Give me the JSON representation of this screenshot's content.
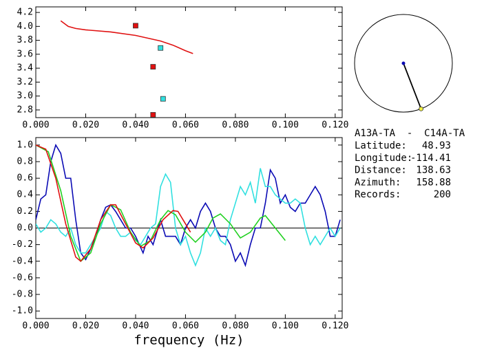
{
  "chart_data": [
    {
      "type": "scatter",
      "xlim": [
        0,
        0.1228
      ],
      "ylim": [
        2.69,
        4.28
      ],
      "xticks": [
        {
          "value": 0,
          "label": "0.000"
        },
        {
          "value": 0.02,
          "label": "0.020"
        },
        {
          "value": 0.04,
          "label": "0.040"
        },
        {
          "value": 0.06,
          "label": "0.060"
        },
        {
          "value": 0.08,
          "label": "0.080"
        },
        {
          "value": 0.1,
          "label": "0.100"
        },
        {
          "value": 0.12,
          "label": "0.120"
        }
      ],
      "yticks": [
        4.2,
        {
          "value": 4.0,
          "label": "4.0"
        },
        3.8,
        3.6,
        3.4,
        3.2,
        {
          "value": 3.0,
          "label": "3.0"
        },
        2.8
      ],
      "series": [
        {
          "color": "#e01010",
          "style": "line",
          "x": [
            0.01,
            0.013,
            0.016,
            0.02,
            0.03,
            0.04,
            0.05,
            0.055,
            0.06,
            0.063
          ],
          "values": [
            4.08,
            4.0,
            3.97,
            3.95,
            3.92,
            3.87,
            3.79,
            3.73,
            3.65,
            3.61
          ]
        },
        {
          "color": "#e01010",
          "style": "marker",
          "x": [
            0.04,
            0.047,
            0.047
          ],
          "values": [
            4.01,
            3.42,
            2.73
          ]
        },
        {
          "color": "#30e0e0",
          "style": "marker",
          "x": [
            0.05,
            0.051
          ],
          "values": [
            3.69,
            2.96
          ]
        }
      ]
    },
    {
      "type": "line",
      "x_label": "frequency (Hz)",
      "xlim": [
        0,
        0.1228
      ],
      "ylim": [
        -1.09,
        1.09
      ],
      "zero_line": true,
      "xticks": [
        {
          "value": 0,
          "label": "0.000"
        },
        {
          "value": 0.02,
          "label": "0.020"
        },
        {
          "value": 0.04,
          "label": "0.040"
        },
        {
          "value": 0.06,
          "label": "0.060"
        },
        {
          "value": 0.08,
          "label": "0.080"
        },
        {
          "value": 0.1,
          "label": "0.100"
        },
        {
          "value": 0.12,
          "label": "0.120"
        }
      ],
      "yticks": [
        {
          "value": 1.0,
          "label": "1.0"
        },
        0.8,
        0.6,
        0.4,
        0.2,
        {
          "value": 0.0,
          "label": "0.0"
        },
        -0.2,
        -0.4,
        -0.6,
        -0.8,
        {
          "value": -1.0,
          "label": "-1.0"
        }
      ],
      "series": [
        {
          "color": "#0a0ab4",
          "x": [
            0,
            0.002,
            0.004,
            0.006,
            0.008,
            0.01,
            0.012,
            0.014,
            0.016,
            0.018,
            0.02,
            0.022,
            0.024,
            0.026,
            0.028,
            0.03,
            0.032,
            0.034,
            0.036,
            0.038,
            0.04,
            0.043,
            0.045,
            0.047,
            0.05,
            0.052,
            0.054,
            0.056,
            0.058,
            0.06,
            0.062,
            0.064,
            0.066,
            0.068,
            0.07,
            0.072,
            0.074,
            0.076,
            0.078,
            0.08,
            0.082,
            0.084,
            0.086,
            0.088,
            0.09,
            0.092,
            0.094,
            0.096,
            0.098,
            0.1,
            0.102,
            0.104,
            0.106,
            0.108,
            0.11,
            0.112,
            0.114,
            0.116,
            0.118,
            0.12,
            0.122
          ],
          "values": [
            0.1,
            0.35,
            0.4,
            0.8,
            1.0,
            0.9,
            0.6,
            0.6,
            0.1,
            -0.3,
            -0.38,
            -0.25,
            -0.1,
            0.1,
            0.25,
            0.28,
            0.2,
            0.1,
            0.0,
            0.0,
            -0.1,
            -0.3,
            -0.1,
            -0.2,
            0.1,
            -0.1,
            -0.1,
            -0.1,
            -0.2,
            0.0,
            0.1,
            0.0,
            0.2,
            0.3,
            0.2,
            0.0,
            -0.1,
            -0.1,
            -0.2,
            -0.4,
            -0.3,
            -0.45,
            -0.2,
            0.0,
            0.0,
            0.3,
            0.7,
            0.6,
            0.3,
            0.4,
            0.25,
            0.2,
            0.3,
            0.3,
            0.4,
            0.5,
            0.4,
            0.2,
            -0.1,
            -0.1,
            0.1
          ]
        },
        {
          "color": "#30e0e0",
          "x": [
            0,
            0.002,
            0.004,
            0.006,
            0.008,
            0.01,
            0.012,
            0.014,
            0.016,
            0.018,
            0.02,
            0.022,
            0.024,
            0.026,
            0.028,
            0.03,
            0.032,
            0.034,
            0.036,
            0.038,
            0.04,
            0.042,
            0.044,
            0.046,
            0.048,
            0.05,
            0.052,
            0.054,
            0.056,
            0.058,
            0.06,
            0.062,
            0.064,
            0.066,
            0.068,
            0.07,
            0.072,
            0.074,
            0.076,
            0.078,
            0.08,
            0.082,
            0.084,
            0.086,
            0.088,
            0.09,
            0.092,
            0.094,
            0.096,
            0.098,
            0.1,
            0.102,
            0.104,
            0.106,
            0.108,
            0.11,
            0.112,
            0.114,
            0.116,
            0.118,
            0.12,
            0.122
          ],
          "values": [
            0.05,
            -0.05,
            0.0,
            0.1,
            0.05,
            -0.05,
            -0.1,
            0.0,
            -0.2,
            -0.3,
            -0.3,
            -0.2,
            -0.1,
            0.0,
            0.2,
            0.15,
            0.0,
            -0.1,
            -0.1,
            -0.05,
            -0.15,
            -0.2,
            -0.1,
            0.0,
            0.05,
            0.5,
            0.65,
            0.55,
            0.0,
            -0.2,
            -0.1,
            -0.3,
            -0.45,
            -0.3,
            0.0,
            -0.1,
            0.0,
            -0.15,
            -0.2,
            0.1,
            0.3,
            0.5,
            0.4,
            0.55,
            0.3,
            0.72,
            0.5,
            0.5,
            0.4,
            0.35,
            0.3,
            0.3,
            0.35,
            0.3,
            0.0,
            -0.2,
            -0.1,
            -0.2,
            -0.1,
            0.0,
            -0.1,
            0.0
          ]
        },
        {
          "color": "#20d020",
          "x": [
            0,
            0.005,
            0.01,
            0.014,
            0.018,
            0.022,
            0.026,
            0.03,
            0.034,
            0.038,
            0.042,
            0.046,
            0.05,
            0.053,
            0.056,
            0.06,
            0.064,
            0.068,
            0.071,
            0.074,
            0.078,
            0.082,
            0.086,
            0.09,
            0.092,
            0.096,
            0.1
          ],
          "values": [
            1.0,
            0.92,
            0.45,
            -0.1,
            -0.4,
            -0.3,
            0.05,
            0.28,
            0.22,
            -0.05,
            -0.22,
            -0.15,
            0.1,
            0.21,
            0.16,
            -0.05,
            -0.17,
            -0.05,
            0.12,
            0.17,
            0.05,
            -0.12,
            -0.05,
            0.12,
            0.15,
            0.0,
            -0.15
          ]
        },
        {
          "color": "#e01010",
          "x": [
            0,
            0.004,
            0.008,
            0.012,
            0.016,
            0.018,
            0.022,
            0.026,
            0.03,
            0.032,
            0.036,
            0.04,
            0.043,
            0.047,
            0.051,
            0.055,
            0.057,
            0.06,
            0.062
          ],
          "values": [
            1.0,
            0.95,
            0.6,
            0.05,
            -0.35,
            -0.4,
            -0.25,
            0.1,
            0.28,
            0.28,
            0.05,
            -0.18,
            -0.24,
            -0.12,
            0.1,
            0.21,
            0.2,
            0.05,
            -0.05
          ]
        }
      ]
    }
  ],
  "info": {
    "title": "A13A-TA  -  C14A-TA",
    "rows": [
      {
        "label": "Latitude:",
        "value": 48.93
      },
      {
        "label": "Longitude:",
        "value": -114.41
      },
      {
        "label": "Distance:",
        "value": 138.63
      },
      {
        "label": "Azimuth:",
        "value": 158.88
      },
      {
        "label": "Records:",
        "value": 200
      }
    ]
  }
}
